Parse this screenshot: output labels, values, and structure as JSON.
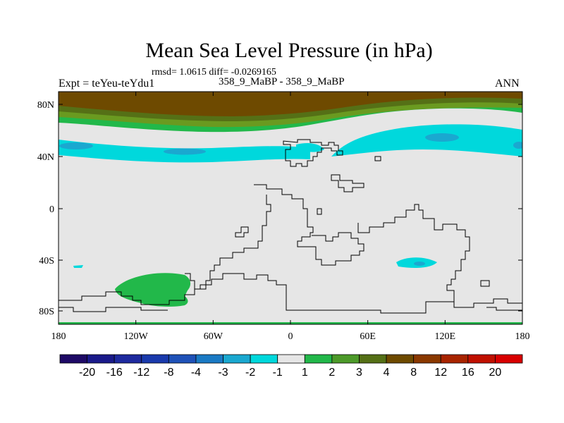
{
  "title": "Mean Sea Level Pressure (in hPa)",
  "subtitle": "rmsd= 1.0615 diff= -0.0269165",
  "left_label": "Expt = teYeu-teYdu1",
  "center_label": "358_9_MaBP - 358_9_MaBP",
  "right_label": "ANN",
  "map": {
    "lat_ticks": [
      "80N",
      "40N",
      "0",
      "40S",
      "80S"
    ],
    "lon_ticks": [
      "180",
      "120W",
      "60W",
      "0",
      "60E",
      "120E",
      "180"
    ],
    "colors": {
      "neutral": "#e6e6e6",
      "cyan_light": "#00d8dc",
      "cyan_dark": "#1aa8d0",
      "green": "#22b84a",
      "olive_light": "#6a9a20",
      "olive": "#557016",
      "brown": "#6e4a00",
      "coast": "#000000"
    }
  },
  "colorbar": {
    "labels": [
      "-20",
      "-16",
      "-12",
      "-8",
      "-4",
      "-3",
      "-2",
      "-1",
      "1",
      "2",
      "3",
      "4",
      "8",
      "12",
      "16",
      "20"
    ],
    "colors": [
      "#1e0a66",
      "#1a1a8a",
      "#1e2a9e",
      "#1a3aac",
      "#1f52b8",
      "#1a7ac4",
      "#1aa8d0",
      "#00d8dc",
      "#e6e6e6",
      "#22b84a",
      "#4d9a2a",
      "#557016",
      "#6e4a00",
      "#8a3800",
      "#a82400",
      "#c01000",
      "#d80000"
    ]
  }
}
